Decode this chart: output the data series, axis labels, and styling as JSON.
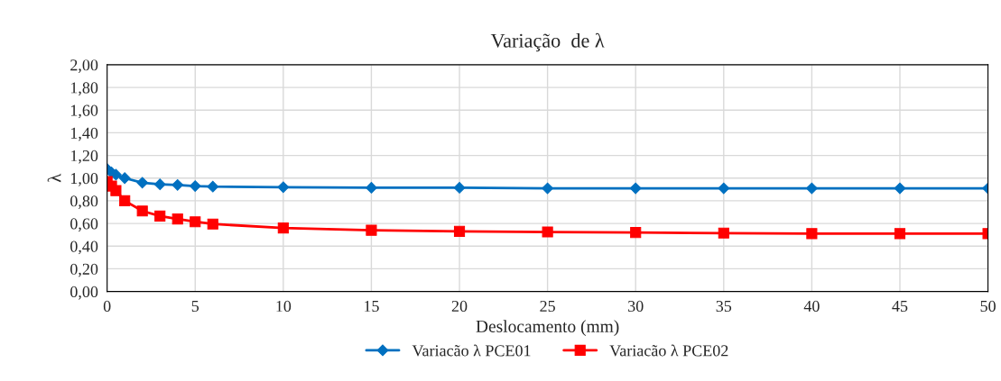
{
  "chart_data": {
    "type": "line",
    "title": "Variação  de λ",
    "xlabel": "Deslocamento (mm)",
    "ylabel": "λ",
    "x": [
      0,
      0.25,
      0.5,
      1,
      2,
      3,
      4,
      5,
      6,
      10,
      15,
      20,
      25,
      30,
      35,
      40,
      45,
      50
    ],
    "series": [
      {
        "name": "Variacão λ PCE01",
        "color": "#0070c0",
        "marker": "diamond",
        "values": [
          1.08,
          1.05,
          1.03,
          1.0,
          0.96,
          0.945,
          0.94,
          0.93,
          0.925,
          0.92,
          0.915,
          0.915,
          0.91,
          0.91,
          0.91,
          0.91,
          0.91,
          0.91
        ]
      },
      {
        "name": "Variacão λ PCE02",
        "color": "#ff0000",
        "marker": "square",
        "values": [
          0.97,
          0.93,
          0.89,
          0.8,
          0.71,
          0.665,
          0.64,
          0.615,
          0.595,
          0.56,
          0.54,
          0.53,
          0.525,
          0.52,
          0.515,
          0.51,
          0.51,
          0.51
        ]
      }
    ],
    "xlim": [
      0,
      50
    ],
    "xticks": [
      0,
      5,
      10,
      15,
      20,
      25,
      30,
      35,
      40,
      45,
      50
    ],
    "ylim": [
      0,
      2
    ],
    "yticks": [
      {
        "value": 0,
        "label": "0,00"
      },
      {
        "value": 0.2,
        "label": "0,20"
      },
      {
        "value": 0.4,
        "label": "0,40"
      },
      {
        "value": 0.6,
        "label": "0,60"
      },
      {
        "value": 0.8,
        "label": "0,80"
      },
      {
        "value": 1.0,
        "label": "1,00"
      },
      {
        "value": 1.2,
        "label": "1,20"
      },
      {
        "value": 1.4,
        "label": "1,40"
      },
      {
        "value": 1.6,
        "label": "1,60"
      },
      {
        "value": 1.8,
        "label": "1,80"
      },
      {
        "value": 2.0,
        "label": "2,00"
      }
    ],
    "grid": true,
    "legend": "bottom",
    "line_style": "solid"
  }
}
